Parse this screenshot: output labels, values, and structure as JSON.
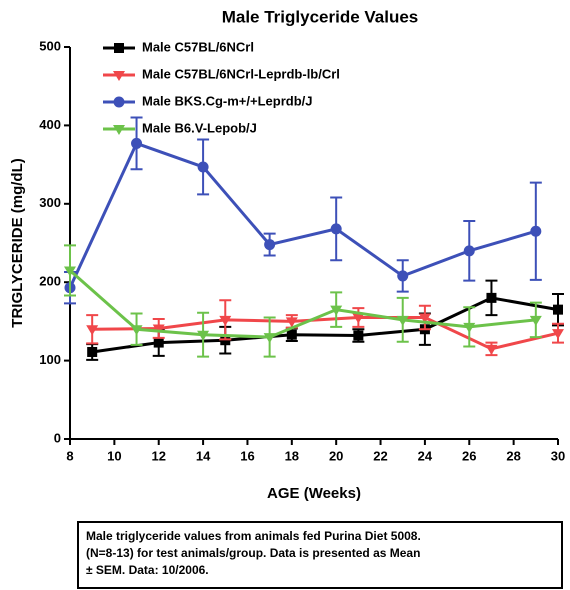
{
  "chart_data": {
    "type": "line",
    "title": "Male Triglyceride Values",
    "x_label": "AGE (Weeks)",
    "y_label": "TRIGLYCERIDE (mg/dL)",
    "xlim": [
      8,
      30
    ],
    "xticks": [
      8,
      10,
      12,
      14,
      16,
      18,
      20,
      22,
      24,
      26,
      28,
      30
    ],
    "ylim": [
      0,
      500
    ],
    "yticks": [
      0,
      100,
      200,
      300,
      400,
      500
    ],
    "series": [
      {
        "name": "Male C57BL/6NCrl",
        "color": "#000000",
        "marker": "square",
        "x": [
          9,
          12,
          15,
          18,
          21,
          24,
          27,
          30
        ],
        "values": [
          111,
          123,
          126,
          133,
          132,
          140,
          180,
          165
        ],
        "errors": [
          10,
          17,
          17,
          8,
          8,
          20,
          22,
          20
        ]
      },
      {
        "name": "Male C57BL/6NCrl-Leprdb-lb/Crl",
        "color": "#f0474a",
        "marker": "triangle-down",
        "x": [
          9,
          12,
          15,
          18,
          21,
          24,
          27,
          30
        ],
        "values": [
          140,
          141,
          152,
          150,
          155,
          155,
          115,
          135
        ],
        "errors": [
          18,
          12,
          25,
          8,
          12,
          15,
          8,
          12
        ]
      },
      {
        "name": "Male BKS.Cg-m+/+Leprdb/J",
        "color": "#3d50b8",
        "marker": "circle",
        "x": [
          8,
          11,
          14,
          17,
          20,
          23,
          26,
          29
        ],
        "values": [
          193,
          377,
          347,
          248,
          268,
          208,
          240,
          265
        ],
        "errors": [
          20,
          33,
          35,
          14,
          40,
          20,
          38,
          62
        ]
      },
      {
        "name": "Male B6.V-Lepob/J",
        "color": "#6cc24a",
        "marker": "triangle-down",
        "x": [
          8,
          11,
          14,
          17,
          20,
          23,
          26,
          29
        ],
        "values": [
          215,
          140,
          133,
          130,
          165,
          152,
          143,
          152
        ],
        "errors": [
          32,
          20,
          28,
          25,
          22,
          28,
          25,
          22
        ]
      }
    ],
    "note": [
      "Male triglyceride values from animals fed Purina Diet 5008.",
      "(N=8-13) for test animals/group.  Data is presented as Mean",
      "± SEM.  Data: 10/2006."
    ]
  }
}
